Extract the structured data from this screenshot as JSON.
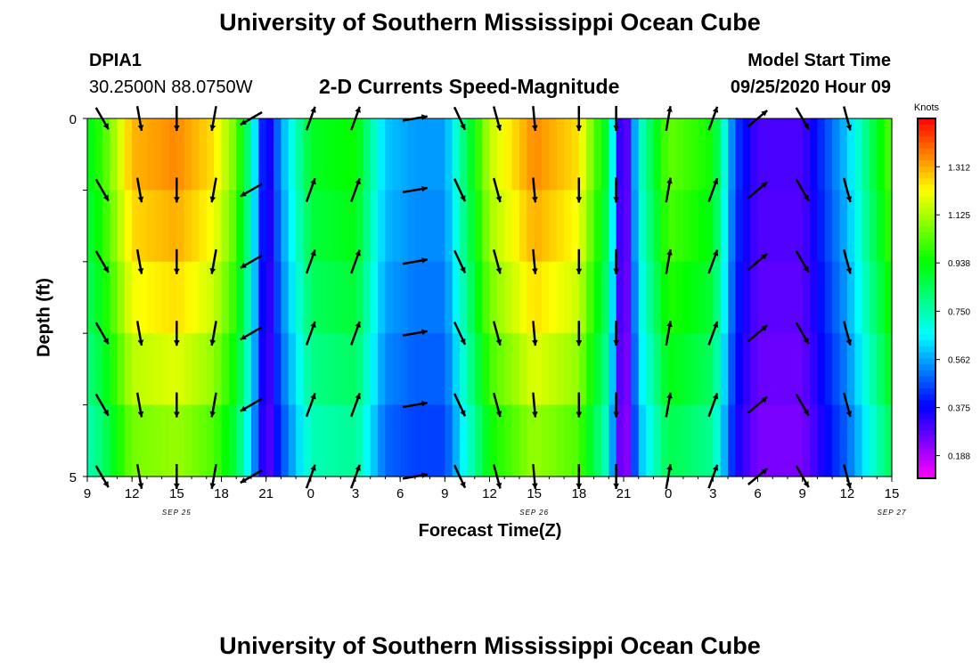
{
  "header": {
    "title": "University of Southern Mississippi Ocean Cube",
    "station_id": "DPIA1",
    "station_coords": "30.2500N 88.0750W",
    "product": "2-D Currents Speed-Magnitude",
    "model_start_label": "Model Start Time",
    "model_start_value": "09/25/2020 Hour 09"
  },
  "footer": {
    "title": "University of Southern Mississippi Ocean Cube"
  },
  "chart_data": {
    "type": "heatmap",
    "title": "2-D Currents Speed-Magnitude",
    "xlabel": "Forecast Time(Z)",
    "ylabel": "Depth (ft)",
    "colorbar_label": "Knots",
    "colorbar_ticks": [
      "1.312",
      "1.125",
      "0.938",
      "0.750",
      "0.562",
      "0.375",
      "0.188"
    ],
    "colorbar_range": [
      0.1,
      1.5
    ],
    "x_tick_labels": [
      "9",
      "12",
      "15",
      "18",
      "21",
      "0",
      "3",
      "6",
      "9",
      "12",
      "15",
      "18",
      "21",
      "0",
      "3",
      "6",
      "9",
      "12",
      "15"
    ],
    "date_labels": [
      {
        "text": "SEP 25",
        "hour": 15
      },
      {
        "text": "SEP 26",
        "hour": 39
      },
      {
        "text": "SEP 27",
        "hour": 63
      }
    ],
    "x_range_hours": [
      9,
      63
    ],
    "y_ticks": [
      "0",
      "5"
    ],
    "ylim": [
      5,
      0
    ],
    "depth_bins": 5,
    "speed_profile": [
      {
        "t": 9,
        "v": 0.9
      },
      {
        "t": 10,
        "v": 1.0
      },
      {
        "t": 12,
        "v": 1.3
      },
      {
        "t": 15,
        "v": 1.35
      },
      {
        "t": 17.5,
        "v": 1.25
      },
      {
        "t": 19,
        "v": 1.05
      },
      {
        "t": 20,
        "v": 0.75
      },
      {
        "t": 21,
        "v": 0.3
      },
      {
        "t": 22,
        "v": 0.55
      },
      {
        "t": 24,
        "v": 0.9
      },
      {
        "t": 27,
        "v": 0.95
      },
      {
        "t": 29,
        "v": 0.6
      },
      {
        "t": 31,
        "v": 0.55
      },
      {
        "t": 33,
        "v": 0.55
      },
      {
        "t": 34,
        "v": 0.75
      },
      {
        "t": 36,
        "v": 1.15
      },
      {
        "t": 39,
        "v": 1.35
      },
      {
        "t": 42,
        "v": 1.25
      },
      {
        "t": 44,
        "v": 0.85
      },
      {
        "t": 45,
        "v": 0.15
      },
      {
        "t": 46,
        "v": 0.7
      },
      {
        "t": 48,
        "v": 1.05
      },
      {
        "t": 51,
        "v": 0.95
      },
      {
        "t": 52.5,
        "v": 0.45
      },
      {
        "t": 54,
        "v": 0.3
      },
      {
        "t": 57,
        "v": 0.3
      },
      {
        "t": 60,
        "v": 0.6
      },
      {
        "t": 63,
        "v": 1.05
      }
    ],
    "vector_times": [
      10,
      12.5,
      15,
      17.5,
      20,
      24,
      27,
      31,
      34,
      36.5,
      39,
      42,
      44.5,
      48,
      51,
      54,
      57,
      60
    ],
    "vector_directions_deg": [
      150,
      170,
      180,
      190,
      240,
      20,
      20,
      80,
      155,
      165,
      175,
      180,
      180,
      10,
      20,
      50,
      150,
      165
    ],
    "colors": {
      "vector": "#000000",
      "frame": "#000000"
    }
  }
}
